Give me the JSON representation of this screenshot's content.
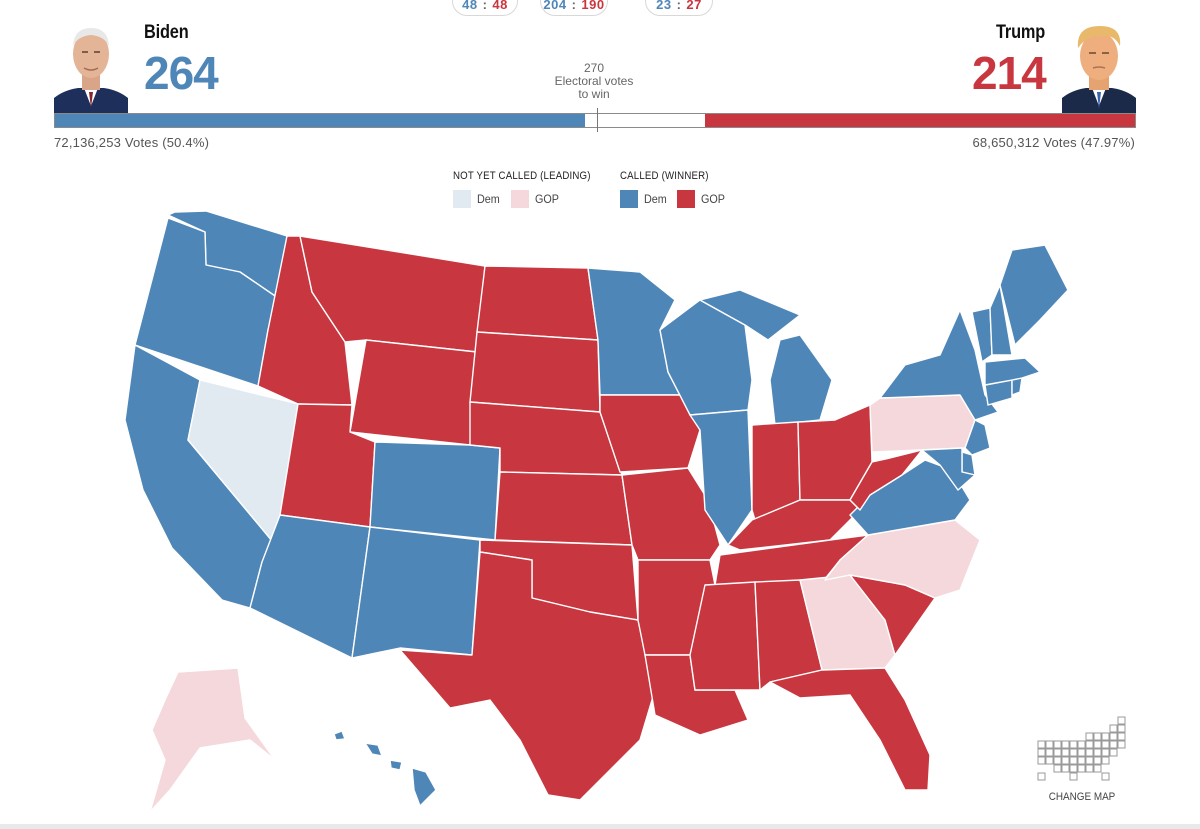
{
  "pills": [
    {
      "dem": "48",
      "gop": "48",
      "sep": ":"
    },
    {
      "dem": "204",
      "gop": "190",
      "sep": ":"
    },
    {
      "dem": "23",
      "gop": "27",
      "sep": ":"
    }
  ],
  "candidates": {
    "dem": {
      "name": "Biden",
      "electoral": "264",
      "popular": "72,136,253 Votes (50.4%)",
      "portrait_icon": "biden-portrait"
    },
    "gop": {
      "name": "Trump",
      "electoral": "214",
      "popular": "68,650,312 Votes (47.97%)",
      "portrait_icon": "trump-portrait"
    }
  },
  "threshold": {
    "value": "270",
    "label_line1": "Electoral votes",
    "label_line2": "to win"
  },
  "progress": {
    "dem_electoral": 264,
    "gop_electoral": 214,
    "total": 538,
    "threshold": 270
  },
  "legend": {
    "not_called_title": "NOT YET CALLED (LEADING)",
    "called_title": "CALLED (WINNER)",
    "dem": "Dem",
    "gop": "GOP"
  },
  "colors": {
    "dem_called": "#4f86b8",
    "gop_called": "#c8363f",
    "dem_leading": "#e1e9f1",
    "gop_leading": "#f4d8db"
  },
  "change_map": {
    "label": "CHANGE MAP",
    "icon": "grid-map-icon"
  },
  "states": [
    {
      "id": "WA",
      "status": "dem_called"
    },
    {
      "id": "OR",
      "status": "dem_called"
    },
    {
      "id": "CA",
      "status": "dem_called"
    },
    {
      "id": "NV",
      "status": "dem_leading"
    },
    {
      "id": "ID",
      "status": "gop_called"
    },
    {
      "id": "MT",
      "status": "gop_called"
    },
    {
      "id": "WY",
      "status": "gop_called"
    },
    {
      "id": "UT",
      "status": "gop_called"
    },
    {
      "id": "AZ",
      "status": "dem_called"
    },
    {
      "id": "CO",
      "status": "dem_called"
    },
    {
      "id": "NM",
      "status": "dem_called"
    },
    {
      "id": "ND",
      "status": "gop_called"
    },
    {
      "id": "SD",
      "status": "gop_called"
    },
    {
      "id": "NE",
      "status": "gop_called"
    },
    {
      "id": "KS",
      "status": "gop_called"
    },
    {
      "id": "OK",
      "status": "gop_called"
    },
    {
      "id": "TX",
      "status": "gop_called"
    },
    {
      "id": "MN",
      "status": "dem_called"
    },
    {
      "id": "IA",
      "status": "gop_called"
    },
    {
      "id": "MO",
      "status": "gop_called"
    },
    {
      "id": "AR",
      "status": "gop_called"
    },
    {
      "id": "LA",
      "status": "gop_called"
    },
    {
      "id": "WI",
      "status": "dem_called"
    },
    {
      "id": "IL",
      "status": "dem_called"
    },
    {
      "id": "MI",
      "status": "dem_called"
    },
    {
      "id": "IN",
      "status": "gop_called"
    },
    {
      "id": "OH",
      "status": "gop_called"
    },
    {
      "id": "KY",
      "status": "gop_called"
    },
    {
      "id": "TN",
      "status": "gop_called"
    },
    {
      "id": "MS",
      "status": "gop_called"
    },
    {
      "id": "AL",
      "status": "gop_called"
    },
    {
      "id": "GA",
      "status": "gop_leading"
    },
    {
      "id": "FL",
      "status": "gop_called"
    },
    {
      "id": "SC",
      "status": "gop_called"
    },
    {
      "id": "NC",
      "status": "gop_leading"
    },
    {
      "id": "VA",
      "status": "dem_called"
    },
    {
      "id": "WV",
      "status": "gop_called"
    },
    {
      "id": "PA",
      "status": "gop_leading"
    },
    {
      "id": "NY",
      "status": "dem_called"
    },
    {
      "id": "NJ",
      "status": "dem_called"
    },
    {
      "id": "DE",
      "status": "dem_called"
    },
    {
      "id": "MD",
      "status": "dem_called"
    },
    {
      "id": "CT",
      "status": "dem_called"
    },
    {
      "id": "RI",
      "status": "dem_called"
    },
    {
      "id": "MA",
      "status": "dem_called"
    },
    {
      "id": "VT",
      "status": "dem_called"
    },
    {
      "id": "NH",
      "status": "dem_called"
    },
    {
      "id": "ME",
      "status": "dem_called"
    },
    {
      "id": "AK",
      "status": "gop_leading"
    },
    {
      "id": "HI",
      "status": "dem_called"
    }
  ]
}
